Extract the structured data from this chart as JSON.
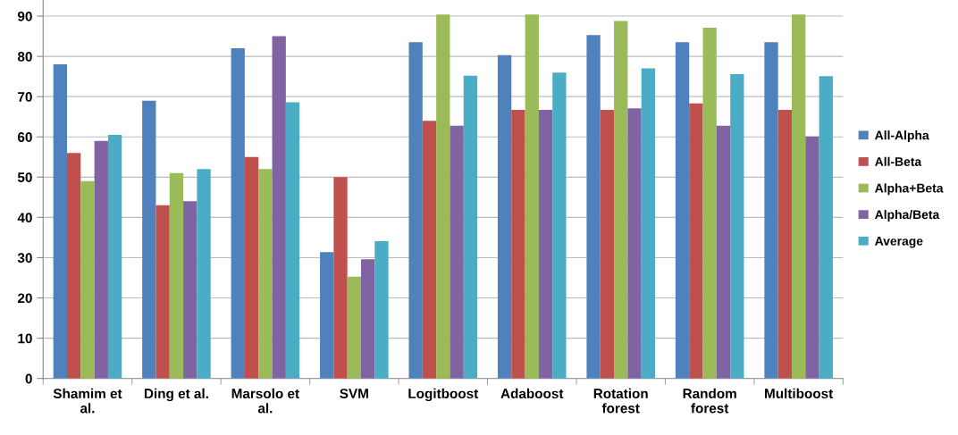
{
  "chart_data": {
    "type": "bar",
    "categories": [
      "Shamim et\nal.",
      "Ding et al.",
      "Marsolo et\nal.",
      "SVM",
      "Logitboost",
      "Adaboost",
      "Rotation\nforest",
      "Random\nforest",
      "Multiboost"
    ],
    "series": [
      {
        "name": "All-Alpha",
        "color": "#4f81bd",
        "values": [
          78,
          69,
          82,
          31.4,
          83.5,
          80.3,
          85.3,
          83.5,
          83.5
        ]
      },
      {
        "name": "All-Beta",
        "color": "#c0504d",
        "values": [
          56,
          43,
          55,
          50,
          64,
          66.7,
          66.7,
          68.3,
          66.7
        ]
      },
      {
        "name": "Alpha+Beta",
        "color": "#9bbb59",
        "values": [
          49,
          51,
          52,
          25.3,
          90.4,
          90.4,
          88.8,
          87.1,
          90.4
        ]
      },
      {
        "name": "Alpha/Beta",
        "color": "#8064a2",
        "values": [
          59,
          44,
          85,
          29.6,
          62.8,
          66.7,
          67.1,
          62.8,
          60.1
        ]
      },
      {
        "name": "Average",
        "color": "#4bacc6",
        "values": [
          60.5,
          52,
          68.6,
          34.1,
          75.2,
          76,
          77,
          75.6,
          75.1
        ]
      }
    ],
    "ylim": [
      0,
      94
    ],
    "yticks": [
      0,
      10,
      20,
      30,
      40,
      50,
      60,
      70,
      80,
      90
    ],
    "grid": "y",
    "legend": "right"
  }
}
